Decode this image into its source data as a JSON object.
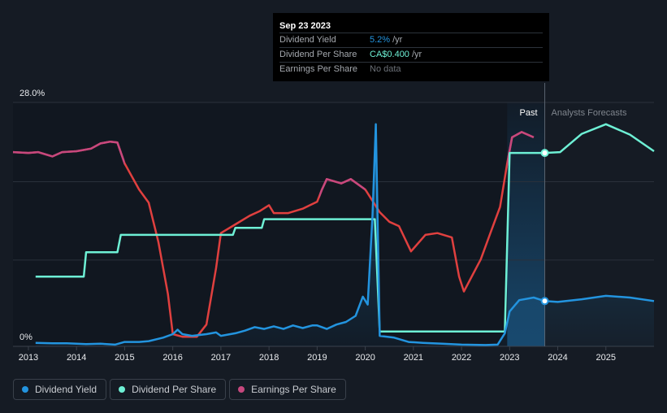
{
  "tooltip": {
    "date": "Sep 23 2023",
    "rows": [
      {
        "label": "Dividend Yield",
        "value": "5.2%",
        "unit": "/yr",
        "color": "#2394df"
      },
      {
        "label": "Dividend Per Share",
        "value": "CA$0.400",
        "unit": "/yr",
        "color": "#6ef0d5"
      },
      {
        "label": "Earnings Per Share",
        "value": "No data",
        "unit": "",
        "color": "#8a8f96"
      }
    ]
  },
  "legend": [
    {
      "label": "Dividend Yield",
      "color": "#2394df"
    },
    {
      "label": "Dividend Per Share",
      "color": "#6ef0d5"
    },
    {
      "label": "Earnings Per Share",
      "color": "#c7487e"
    }
  ],
  "chart_data": {
    "type": "line",
    "y_top_label": "28.0%",
    "y_bottom_label": "0%",
    "ylim": [
      0,
      28
    ],
    "xlim": [
      2012.68,
      2026.0
    ],
    "x_ticks": [
      "2013",
      "2014",
      "2015",
      "2016",
      "2017",
      "2018",
      "2019",
      "2020",
      "2021",
      "2022",
      "2023",
      "2024",
      "2025"
    ],
    "past_label": "Past",
    "forecast_label": "Analysts Forecasts",
    "past_band": [
      2022.95,
      2023.73
    ],
    "marker_x": 2023.73,
    "colors": {
      "yield": "#2394df",
      "dps": "#6ef0d5",
      "eps_pink": "#c7487e",
      "eps_red": "#e0403f",
      "grid": "#2a313b",
      "axis_text": "#e9ebee"
    },
    "dividend_yield": {
      "name": "Dividend Yield",
      "past": [
        [
          2013.15,
          0.4
        ],
        [
          2013.5,
          0.35
        ],
        [
          2013.8,
          0.35
        ],
        [
          2014.2,
          0.25
        ],
        [
          2014.5,
          0.3
        ],
        [
          2014.8,
          0.2
        ],
        [
          2015.0,
          0.5
        ],
        [
          2015.3,
          0.5
        ],
        [
          2015.5,
          0.6
        ],
        [
          2015.8,
          1.0
        ],
        [
          2016.0,
          1.4
        ],
        [
          2016.1,
          1.9
        ],
        [
          2016.2,
          1.4
        ],
        [
          2016.4,
          1.2
        ],
        [
          2016.7,
          1.4
        ],
        [
          2016.9,
          1.6
        ],
        [
          2017.0,
          1.2
        ],
        [
          2017.3,
          1.5
        ],
        [
          2017.5,
          1.8
        ],
        [
          2017.7,
          2.2
        ],
        [
          2017.9,
          2.0
        ],
        [
          2018.1,
          2.3
        ],
        [
          2018.3,
          2.0
        ],
        [
          2018.5,
          2.4
        ],
        [
          2018.7,
          2.1
        ],
        [
          2018.9,
          2.4
        ],
        [
          2019.0,
          2.4
        ],
        [
          2019.2,
          2.0
        ],
        [
          2019.4,
          2.5
        ],
        [
          2019.6,
          2.8
        ],
        [
          2019.8,
          3.5
        ],
        [
          2019.95,
          5.7
        ],
        [
          2020.05,
          4.8
        ],
        [
          2020.15,
          15.0
        ],
        [
          2020.22,
          25.5
        ],
        [
          2020.3,
          1.2
        ],
        [
          2020.6,
          1.0
        ],
        [
          2020.9,
          0.5
        ],
        [
          2021.2,
          0.4
        ],
        [
          2021.6,
          0.3
        ],
        [
          2022.0,
          0.2
        ],
        [
          2022.5,
          0.15
        ],
        [
          2022.75,
          0.2
        ],
        [
          2022.9,
          1.5
        ],
        [
          2023.0,
          4.0
        ],
        [
          2023.2,
          5.3
        ],
        [
          2023.5,
          5.6
        ],
        [
          2023.73,
          5.2
        ]
      ],
      "forecast": [
        [
          2023.73,
          5.2
        ],
        [
          2024.0,
          5.1
        ],
        [
          2024.5,
          5.4
        ],
        [
          2025.0,
          5.8
        ],
        [
          2025.5,
          5.6
        ],
        [
          2026.0,
          5.2
        ]
      ]
    },
    "dividend_per_share": {
      "name": "Dividend Per Share",
      "past": [
        [
          2013.15,
          8.0
        ],
        [
          2014.15,
          8.0
        ],
        [
          2014.2,
          10.8
        ],
        [
          2014.85,
          10.8
        ],
        [
          2014.92,
          12.8
        ],
        [
          2016.15,
          12.8
        ],
        [
          2017.25,
          12.8
        ],
        [
          2017.3,
          13.6
        ],
        [
          2017.85,
          13.6
        ],
        [
          2017.9,
          14.6
        ],
        [
          2020.2,
          14.6
        ],
        [
          2020.3,
          1.7
        ],
        [
          2022.9,
          1.7
        ],
        [
          2023.0,
          22.2
        ],
        [
          2023.73,
          22.2
        ]
      ],
      "forecast": [
        [
          2023.73,
          22.2
        ],
        [
          2024.05,
          22.3
        ],
        [
          2024.5,
          24.4
        ],
        [
          2025.0,
          25.5
        ],
        [
          2025.5,
          24.3
        ],
        [
          2026.0,
          22.4
        ]
      ]
    },
    "eps_line": [
      [
        2012.68,
        22.3
      ],
      [
        2013.0,
        22.2
      ],
      [
        2013.2,
        22.3
      ],
      [
        2013.5,
        21.8
      ],
      [
        2013.7,
        22.3
      ],
      [
        2014.0,
        22.4
      ],
      [
        2014.3,
        22.7
      ],
      [
        2014.5,
        23.3
      ],
      [
        2014.7,
        23.5
      ],
      [
        2014.85,
        23.4
      ],
      [
        2015.0,
        21.0
      ],
      [
        2015.3,
        18.0
      ],
      [
        2015.5,
        16.5
      ],
      [
        2015.7,
        12.0
      ],
      [
        2015.9,
        6.0
      ],
      [
        2016.0,
        1.4
      ],
      [
        2016.2,
        1.1
      ],
      [
        2016.5,
        1.1
      ],
      [
        2016.7,
        2.5
      ],
      [
        2016.9,
        9.0
      ],
      [
        2017.0,
        13.0
      ],
      [
        2017.3,
        14.0
      ],
      [
        2017.6,
        15.0
      ],
      [
        2017.8,
        15.5
      ],
      [
        2018.0,
        16.2
      ],
      [
        2018.1,
        15.3
      ],
      [
        2018.4,
        15.3
      ],
      [
        2018.7,
        15.8
      ],
      [
        2019.0,
        16.6
      ],
      [
        2019.1,
        18.0
      ],
      [
        2019.2,
        19.2
      ],
      [
        2019.5,
        18.7
      ],
      [
        2019.7,
        19.2
      ],
      [
        2020.0,
        18.0
      ],
      [
        2020.3,
        15.4
      ],
      [
        2020.5,
        14.3
      ],
      [
        2020.7,
        13.8
      ],
      [
        2020.95,
        10.9
      ],
      [
        2021.25,
        12.8
      ],
      [
        2021.5,
        13.0
      ],
      [
        2021.8,
        12.5
      ],
      [
        2021.95,
        8.0
      ],
      [
        2022.05,
        6.3
      ],
      [
        2022.4,
        10.0
      ],
      [
        2022.6,
        13.0
      ],
      [
        2022.8,
        16.0
      ],
      [
        2022.95,
        21.0
      ],
      [
        2023.05,
        24.0
      ],
      [
        2023.25,
        24.6
      ],
      [
        2023.5,
        24.0
      ]
    ],
    "eps_pink_ranges": [
      [
        2012.6,
        2015.0
      ],
      [
        2019.05,
        2020.0
      ],
      [
        2022.95,
        2024.0
      ]
    ]
  }
}
